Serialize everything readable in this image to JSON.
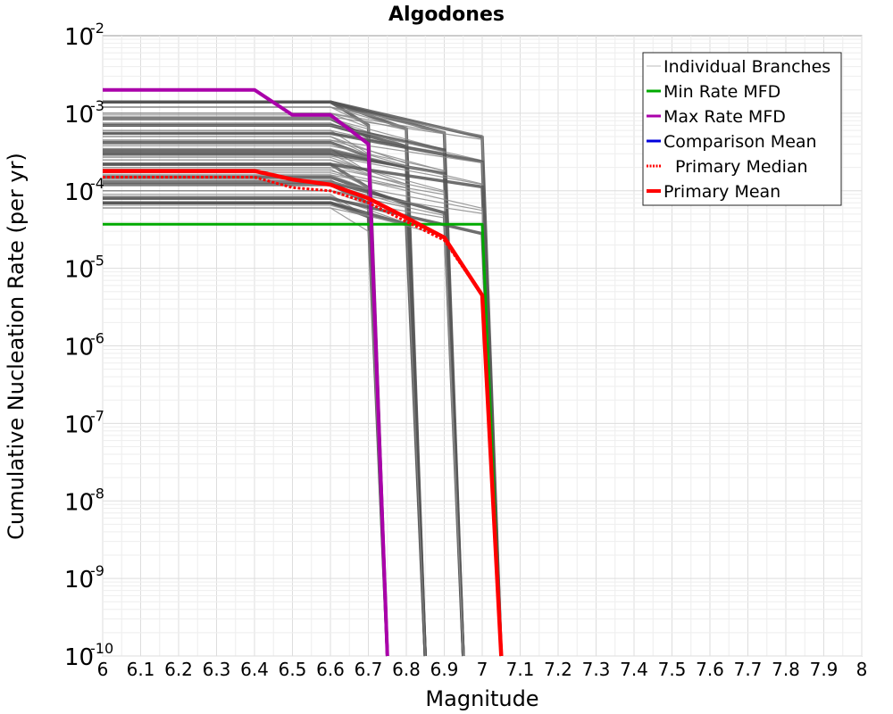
{
  "chart_data": {
    "type": "line",
    "title": "Algodones",
    "xlabel": "Magnitude",
    "ylabel": "Cumulative Nucleation Rate (per yr)",
    "xlim": [
      6,
      8
    ],
    "ylim_log10": [
      -10,
      -2
    ],
    "y_scale": "log",
    "grid": true,
    "legend_position": "top-right",
    "x_ticks": [
      "6",
      "6.1",
      "6.2",
      "6.3",
      "6.4",
      "6.5",
      "6.6",
      "6.7",
      "6.8",
      "6.9",
      "7",
      "7.1",
      "7.2",
      "7.3",
      "7.4",
      "7.5",
      "7.6",
      "7.7",
      "7.8",
      "7.9",
      "8"
    ],
    "y_ticks": [
      {
        "base": "10",
        "exp": "-2"
      },
      {
        "base": "10",
        "exp": "-3"
      },
      {
        "base": "10",
        "exp": "-4"
      },
      {
        "base": "10",
        "exp": "-5"
      },
      {
        "base": "10",
        "exp": "-6"
      },
      {
        "base": "10",
        "exp": "-7"
      },
      {
        "base": "10",
        "exp": "-8"
      },
      {
        "base": "10",
        "exp": "-9"
      },
      {
        "base": "10",
        "exp": "-10"
      }
    ],
    "legend": [
      {
        "label": "Individual Branches",
        "color": "#bbbbbb",
        "style": "solid-thin"
      },
      {
        "label": "Min Rate MFD",
        "color": "#00aa00",
        "style": "solid"
      },
      {
        "label": "Max Rate MFD",
        "color": "#aa00aa",
        "style": "solid"
      },
      {
        "label": "Comparison Mean",
        "color": "#0000dd",
        "style": "solid"
      },
      {
        "label": "Primary Median",
        "color": "#ff0000",
        "style": "dotted"
      },
      {
        "label": "Primary Mean",
        "color": "#ff0000",
        "style": "solid-thick"
      }
    ],
    "series": [
      {
        "name": "Min Rate MFD",
        "color": "#00aa00",
        "width": 3,
        "dash": "",
        "x": [
          6.0,
          7.0,
          7.05
        ],
        "y": [
          3.7e-05,
          3.7e-05,
          1e-10
        ]
      },
      {
        "name": "Max Rate MFD",
        "color": "#aa00aa",
        "width": 4,
        "dash": "",
        "x": [
          6.0,
          6.4,
          6.5,
          6.6,
          6.7,
          6.75
        ],
        "y": [
          0.002,
          0.002,
          0.00095,
          0.00095,
          0.0004,
          1e-10
        ]
      },
      {
        "name": "Primary Median",
        "color": "#ff0000",
        "width": 3,
        "dash": "3,2",
        "x": [
          6.0,
          6.4,
          6.5,
          6.6,
          6.7,
          6.8,
          6.9,
          7.0,
          7.05
        ],
        "y": [
          0.00015,
          0.00015,
          0.00011,
          0.0001,
          7e-05,
          4e-05,
          2.3e-05,
          4.5e-06,
          1e-10
        ]
      },
      {
        "name": "Primary Mean",
        "color": "#ff0000",
        "width": 4.5,
        "dash": "",
        "x": [
          6.0,
          6.4,
          6.5,
          6.6,
          6.7,
          6.8,
          6.9,
          7.0,
          7.05
        ],
        "y": [
          0.00018,
          0.00018,
          0.00014,
          0.00012,
          8e-05,
          4.5e-05,
          2.5e-05,
          4.5e-06,
          1e-10
        ]
      }
    ],
    "branch_groups": [
      {
        "plateau_end": 6.6,
        "drop_x": 6.7,
        "end_x": 6.75,
        "levels": [
          0.0014,
          0.0012,
          0.001,
          0.00095,
          0.00085,
          0.00075,
          0.0006,
          0.0005,
          0.00042,
          0.00035,
          0.0003,
          0.00025,
          0.00022,
          0.00019,
          0.00016,
          0.00014,
          0.00012,
          0.0001,
          9e-05,
          8e-05,
          7e-05,
          6e-05
        ],
        "knee_factor": 0.5
      },
      {
        "plateau_end": 6.6,
        "drop_x": 6.8,
        "end_x": 6.85,
        "levels": [
          0.0014,
          0.0012,
          0.001,
          0.00085,
          0.0007,
          0.0006,
          0.0005,
          0.0004,
          0.00033,
          0.00027,
          0.00022,
          0.00018,
          0.00015,
          0.00012,
          0.0001,
          8.5e-05,
          7e-05,
          6e-05
        ],
        "knee_factor": 0.45
      },
      {
        "plateau_end": 6.6,
        "drop_x": 6.9,
        "end_x": 6.95,
        "levels": [
          0.0014,
          0.0012,
          0.001,
          0.00085,
          0.0007,
          0.00055,
          0.00045,
          0.00038,
          0.0003,
          0.00025,
          0.0002,
          0.00016,
          0.00013,
          0.0001,
          8e-05,
          6.5e-05
        ],
        "knee_factor": 0.4
      },
      {
        "plateau_end": 6.6,
        "drop_x": 7.0,
        "end_x": 7.05,
        "levels": [
          0.0014,
          0.0012,
          0.0009,
          0.0007,
          0.00055,
          0.00045,
          0.00035,
          0.00028,
          0.00022,
          0.00017,
          0.00013,
          0.0001,
          8e-05
        ],
        "knee_factor": 0.35
      }
    ]
  }
}
